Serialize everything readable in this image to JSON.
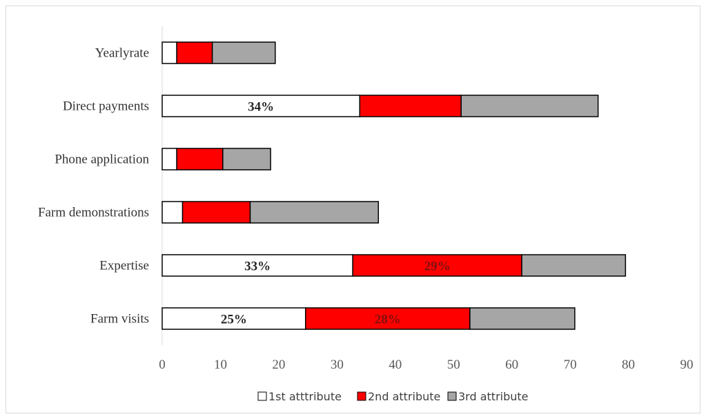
{
  "chart_data": {
    "type": "bar",
    "orientation": "horizontal",
    "stacked": true,
    "categories": [
      "Farm visits",
      "Expertise",
      "Farm demonstrations",
      "Phone application",
      "Direct payments",
      "Yearlyrate"
    ],
    "series": [
      {
        "name": "1st atttribute",
        "color": "#ffffff",
        "values": [
          24.6,
          32.7,
          3.5,
          2.5,
          33.9,
          2.5
        ],
        "labels": [
          "25%",
          "33%",
          "",
          "",
          "34%",
          ""
        ]
      },
      {
        "name": "2nd attribute",
        "color": "#ff0000",
        "values": [
          28.2,
          29.0,
          11.6,
          7.9,
          17.4,
          6.1
        ],
        "labels": [
          "28%",
          "29%",
          "",
          "",
          "",
          ""
        ]
      },
      {
        "name": "3rd attribute",
        "color": "#a6a6a6",
        "values": [
          18.0,
          17.8,
          22.0,
          8.2,
          23.5,
          10.8
        ],
        "labels": [
          "",
          "",
          "",
          "",
          "",
          ""
        ]
      }
    ],
    "xticks": [
      "0",
      "10",
      "20",
      "30",
      "40",
      "50",
      "60",
      "70",
      "80",
      "90"
    ],
    "xlim": [
      0,
      90
    ],
    "legend_position": "bottom",
    "grid": false
  }
}
